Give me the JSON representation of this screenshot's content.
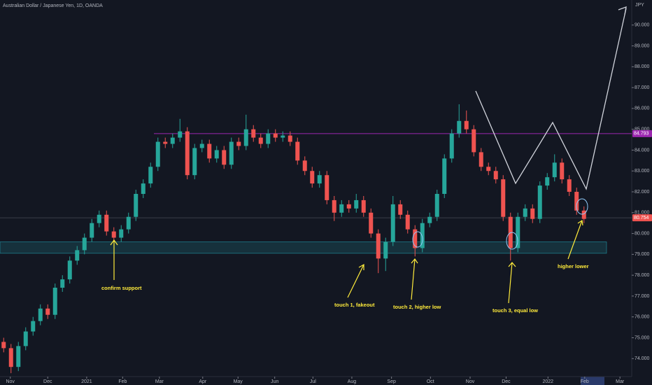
{
  "chart_data": {
    "type": "candlestick",
    "title": "Australian Dollar / Japanese Yen, 1D, OANDA",
    "currency": "JPY",
    "up_color": "#26a69a",
    "down_color": "#ef5350",
    "ohlc": [
      [
        74.8,
        75.0,
        74.3,
        74.5
      ],
      [
        74.5,
        74.7,
        73.3,
        73.6
      ],
      [
        73.6,
        74.8,
        73.4,
        74.6
      ],
      [
        74.6,
        75.5,
        74.4,
        75.3
      ],
      [
        75.3,
        76.0,
        75.1,
        75.8
      ],
      [
        75.8,
        76.6,
        75.6,
        76.4
      ],
      [
        76.4,
        76.6,
        75.9,
        76.1
      ],
      [
        76.1,
        77.6,
        75.9,
        77.4
      ],
      [
        77.4,
        78.0,
        77.2,
        77.8
      ],
      [
        77.8,
        78.9,
        77.6,
        78.7
      ],
      [
        78.7,
        79.4,
        78.5,
        79.2
      ],
      [
        79.2,
        80.0,
        79.0,
        79.8
      ],
      [
        79.8,
        80.7,
        79.6,
        80.5
      ],
      [
        80.5,
        81.1,
        80.3,
        80.9
      ],
      [
        80.9,
        81.1,
        79.9,
        80.1
      ],
      [
        80.1,
        80.3,
        79.6,
        79.8
      ],
      [
        79.8,
        80.4,
        79.6,
        80.2
      ],
      [
        80.2,
        81.0,
        80.0,
        80.8
      ],
      [
        80.8,
        82.1,
        80.6,
        81.9
      ],
      [
        81.9,
        82.6,
        81.7,
        82.4
      ],
      [
        82.4,
        83.4,
        82.2,
        83.2
      ],
      [
        83.2,
        84.6,
        83.0,
        84.4
      ],
      [
        84.4,
        84.6,
        84.1,
        84.3
      ],
      [
        84.3,
        84.8,
        84.1,
        84.6
      ],
      [
        84.6,
        85.5,
        84.4,
        84.9
      ],
      [
        84.9,
        85.1,
        82.6,
        82.8
      ],
      [
        82.8,
        84.3,
        82.6,
        84.1
      ],
      [
        84.1,
        84.5,
        83.9,
        84.3
      ],
      [
        84.3,
        84.5,
        83.4,
        83.6
      ],
      [
        83.6,
        84.2,
        83.4,
        84.0
      ],
      [
        84.0,
        84.2,
        83.1,
        83.3
      ],
      [
        83.3,
        84.6,
        83.1,
        84.4
      ],
      [
        84.4,
        84.6,
        84.0,
        84.2
      ],
      [
        84.2,
        85.7,
        84.0,
        85.0
      ],
      [
        85.0,
        85.2,
        84.4,
        84.6
      ],
      [
        84.6,
        84.8,
        84.1,
        84.3
      ],
      [
        84.3,
        85.0,
        84.1,
        84.8
      ],
      [
        84.8,
        85.0,
        84.4,
        84.6
      ],
      [
        84.6,
        84.9,
        84.4,
        84.7
      ],
      [
        84.7,
        84.9,
        84.2,
        84.4
      ],
      [
        84.4,
        84.6,
        83.3,
        83.5
      ],
      [
        83.5,
        83.7,
        82.8,
        83.0
      ],
      [
        83.0,
        83.2,
        82.2,
        82.4
      ],
      [
        82.4,
        83.0,
        82.2,
        82.8
      ],
      [
        82.8,
        83.0,
        81.4,
        81.6
      ],
      [
        81.6,
        81.8,
        80.6,
        81.0
      ],
      [
        81.0,
        81.6,
        80.8,
        81.4
      ],
      [
        81.4,
        81.6,
        81.0,
        81.2
      ],
      [
        81.2,
        81.9,
        81.0,
        81.6
      ],
      [
        81.6,
        81.8,
        80.8,
        81.0
      ],
      [
        81.0,
        81.2,
        79.8,
        80.0
      ],
      [
        80.0,
        80.2,
        78.1,
        78.8
      ],
      [
        78.8,
        79.8,
        78.2,
        79.6
      ],
      [
        79.6,
        81.8,
        79.4,
        81.4
      ],
      [
        81.4,
        81.6,
        80.7,
        80.9
      ],
      [
        80.9,
        81.1,
        80.0,
        80.2
      ],
      [
        80.2,
        80.4,
        78.9,
        79.3
      ],
      [
        79.3,
        80.7,
        79.1,
        80.5
      ],
      [
        80.5,
        81.0,
        80.3,
        80.8
      ],
      [
        80.8,
        82.1,
        80.6,
        81.9
      ],
      [
        81.9,
        83.8,
        81.7,
        83.6
      ],
      [
        83.6,
        85.0,
        83.4,
        84.8
      ],
      [
        84.8,
        86.2,
        84.6,
        85.4
      ],
      [
        85.4,
        85.9,
        84.8,
        85.0
      ],
      [
        85.0,
        85.2,
        83.7,
        83.9
      ],
      [
        83.9,
        84.1,
        83.0,
        83.2
      ],
      [
        83.2,
        83.4,
        82.8,
        83.0
      ],
      [
        83.0,
        83.2,
        82.4,
        82.6
      ],
      [
        82.6,
        82.8,
        80.6,
        80.8
      ],
      [
        80.8,
        81.0,
        78.7,
        79.3
      ],
      [
        79.3,
        81.0,
        79.1,
        80.8
      ],
      [
        80.8,
        81.4,
        80.6,
        81.2
      ],
      [
        81.2,
        81.4,
        80.5,
        80.7
      ],
      [
        80.7,
        82.5,
        80.5,
        82.3
      ],
      [
        82.3,
        82.9,
        82.1,
        82.7
      ],
      [
        82.7,
        83.8,
        82.5,
        83.4
      ],
      [
        83.4,
        83.6,
        82.4,
        82.6
      ],
      [
        82.6,
        82.8,
        81.8,
        82.0
      ],
      [
        82.0,
        82.2,
        80.9,
        81.1
      ],
      [
        81.1,
        81.3,
        80.5,
        80.7
      ]
    ],
    "xlim": [
      0,
      86
    ],
    "xticks": [
      {
        "value": 1.4,
        "label": "Nov"
      },
      {
        "value": 6.5,
        "label": "Dec"
      },
      {
        "value": 11.8,
        "label": "2021"
      },
      {
        "value": 16.7,
        "label": "Feb"
      },
      {
        "value": 21.7,
        "label": "Mar"
      },
      {
        "value": 27.6,
        "label": "Apr"
      },
      {
        "value": 32.4,
        "label": "May"
      },
      {
        "value": 37.4,
        "label": "Jun"
      },
      {
        "value": 42.6,
        "label": "Jul"
      },
      {
        "value": 47.9,
        "label": "Aug"
      },
      {
        "value": 53.3,
        "label": "Sep"
      },
      {
        "value": 58.6,
        "label": "Oct"
      },
      {
        "value": 64,
        "label": "Nov"
      },
      {
        "value": 68.9,
        "label": "Dec"
      },
      {
        "value": 74.6,
        "label": "2022"
      },
      {
        "value": 79.6,
        "label": "Feb"
      },
      {
        "value": 84.4,
        "label": "Mar"
      }
    ],
    "ylim": [
      72.8,
      91.0
    ],
    "yticks": [
      {
        "value": 74,
        "label": "74.000"
      },
      {
        "value": 75,
        "label": "75.000"
      },
      {
        "value": 76,
        "label": "76.000"
      },
      {
        "value": 77,
        "label": "77.000"
      },
      {
        "value": 78,
        "label": "78.000"
      },
      {
        "value": 79,
        "label": "79.000"
      },
      {
        "value": 80,
        "label": "80.000"
      },
      {
        "value": 81,
        "label": "81.000"
      },
      {
        "value": 82,
        "label": "82.000"
      },
      {
        "value": 83,
        "label": "83.000"
      },
      {
        "value": 84,
        "label": "84.000"
      },
      {
        "value": 85,
        "label": "85.000"
      },
      {
        "value": 86,
        "label": "86.000"
      },
      {
        "value": 87,
        "label": "87.000"
      },
      {
        "value": 88,
        "label": "88.000"
      },
      {
        "value": 89,
        "label": "89.000"
      },
      {
        "value": 90,
        "label": "90.000"
      }
    ],
    "grid": false,
    "resistance": 84.793,
    "resistance_color": "#9c27b0",
    "last_price": 80.754,
    "support_zone": [
      79.05,
      79.6
    ],
    "support_color": "#26c6da",
    "annotations": [
      "confirm support",
      "touch 1, fakeout",
      "touch 2, higher low",
      "touch 3, equal low",
      "higher lower"
    ]
  }
}
